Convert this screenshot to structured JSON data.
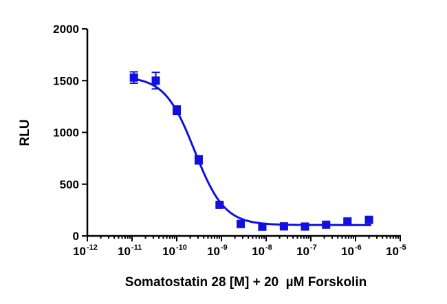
{
  "chart_data": {
    "type": "scatter",
    "title": "",
    "xlabel": "Somatostatin 28 [M] + 20  µM Forskolin",
    "ylabel": "RLU",
    "xscale": "log",
    "xlim": [
      1e-12,
      1e-05
    ],
    "ylim": [
      0,
      2000
    ],
    "x_ticks": [
      {
        "base": "10",
        "exp": "-12",
        "value": 1e-12
      },
      {
        "base": "10",
        "exp": "-11",
        "value": 1e-11
      },
      {
        "base": "10",
        "exp": "-10",
        "value": 1e-10
      },
      {
        "base": "10",
        "exp": "-9",
        "value": 1e-09
      },
      {
        "base": "10",
        "exp": "-8",
        "value": 1e-08
      },
      {
        "base": "10",
        "exp": "-7",
        "value": 1e-07
      },
      {
        "base": "10",
        "exp": "-6",
        "value": 1e-06
      },
      {
        "base": "10",
        "exp": "-5",
        "value": 1e-05
      }
    ],
    "y_ticks": [
      0,
      500,
      1000,
      1500,
      2000
    ],
    "grid": false,
    "legend": "none",
    "color": "#1010e0",
    "series": [
      {
        "marker": "square",
        "points": [
          {
            "x": 1.1e-11,
            "y": 1530,
            "err": 55
          },
          {
            "x": 3.4e-11,
            "y": 1500,
            "err": 80
          },
          {
            "x": 1e-10,
            "y": 1215,
            "err": 40
          },
          {
            "x": 3.1e-10,
            "y": 735,
            "err": 40
          },
          {
            "x": 9.1e-10,
            "y": 300,
            "err": 15
          },
          {
            "x": 2.7e-09,
            "y": 115,
            "err": 25
          },
          {
            "x": 8.2e-09,
            "y": 88,
            "err": 10
          },
          {
            "x": 2.5e-08,
            "y": 92,
            "err": 10
          },
          {
            "x": 7.4e-08,
            "y": 90,
            "err": 10
          },
          {
            "x": 2.2e-07,
            "y": 108,
            "err": 15
          },
          {
            "x": 6.6e-07,
            "y": 140,
            "err": 15
          },
          {
            "x": 2e-06,
            "y": 155,
            "err": 15
          }
        ],
        "fit": {
          "top": 1540,
          "bottom": 105,
          "log_ic50": -9.6,
          "hill": -1.3
        }
      }
    ]
  }
}
